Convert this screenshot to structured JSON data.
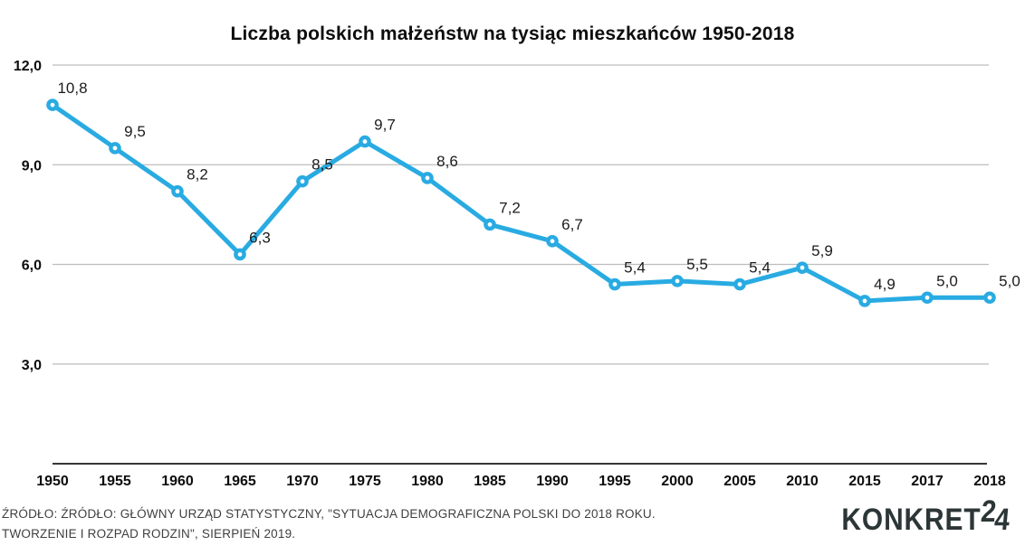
{
  "chart_data": {
    "type": "line",
    "title": "Liczba polskich małżeństw na tysiąc mieszkańców 1950-2018",
    "categories": [
      "1950",
      "1955",
      "1960",
      "1965",
      "1970",
      "1975",
      "1980",
      "1985",
      "1990",
      "1995",
      "2000",
      "2005",
      "2010",
      "2015",
      "2017",
      "2018"
    ],
    "values": [
      10.8,
      9.5,
      8.2,
      6.3,
      8.5,
      9.7,
      8.6,
      7.2,
      6.7,
      5.4,
      5.5,
      5.4,
      5.9,
      4.9,
      5.0,
      5.0
    ],
    "point_labels": [
      "10,8",
      "9,5",
      "8,2",
      "6,3",
      "8,5",
      "9,7",
      "8,6",
      "7,2",
      "6,7",
      "5,4",
      "5,5",
      "5,4",
      "5,9",
      "4,9",
      "5,0",
      "5,0"
    ],
    "ytick_values": [
      12,
      9,
      6,
      3
    ],
    "ytick_labels": [
      "12,0",
      "9,0",
      "6,0",
      "3,0"
    ],
    "ylim": [
      0,
      12
    ],
    "grid": true,
    "legend": "none",
    "line_color": "#29abe2",
    "marker_fill": "#ffffff",
    "grid_color": "#bdbdbd",
    "axis_color": "#1a1a1a",
    "label_color": "#1c1c1c"
  },
  "footer": {
    "source_line1": "ŹRÓDŁO: ŹRÓDŁO: GŁÓWNY URZĄD STATYSTYCZNY, \"SYTUACJA DEMOGRAFICZNA POLSKI DO 2018 ROKU.",
    "source_line2": "TWORZENIE I ROZPAD RODZIN\", SIERPIEŃ 2019.",
    "logo": {
      "main": "KONKRET",
      "digit_raised": "2",
      "digit_base": "4"
    }
  }
}
